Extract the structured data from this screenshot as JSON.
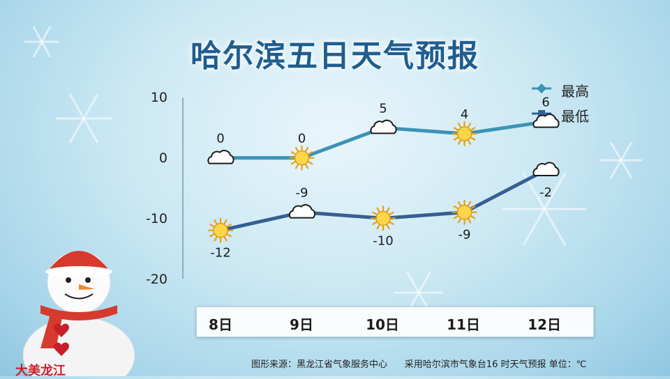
{
  "title": "哈尔滨五日天气预报",
  "chart_data": {
    "type": "line",
    "categories": [
      "8日",
      "9日",
      "10日",
      "11日",
      "12日"
    ],
    "series": [
      {
        "name": "最高",
        "values": [
          0,
          0,
          5,
          4,
          6
        ],
        "color": "#3b93b5",
        "icons": [
          "cloud-icon",
          "sun-icon",
          "cloud-icon",
          "sun-icon",
          "cloud-icon"
        ]
      },
      {
        "name": "最低",
        "values": [
          -12,
          -9,
          -10,
          -9,
          -2
        ],
        "color": "#355f93",
        "icons": [
          "sun-icon",
          "cloud-icon",
          "sun-icon",
          "sun-icon",
          "cloud-icon"
        ]
      }
    ],
    "ylim": [
      -20,
      10
    ],
    "yticks": [
      "10",
      "0",
      "-10",
      "-20"
    ],
    "legend": "top-right"
  },
  "footer": "图形来源：黑龙江省气象服务中心      采用哈尔滨市气象台16 时天气预报 单位：℃",
  "snowman_sign": "大美龙江"
}
